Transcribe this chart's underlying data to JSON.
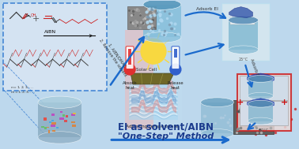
{
  "background_color": "#bdd8ed",
  "title_text1": "EI as solvent/AIBN",
  "title_text2": "\"One-Step\" Method",
  "title_color": "#1a3a8c",
  "title_fontsize1": 8.5,
  "title_fontsize2": 8.0,
  "center_label_solar": "Solar Cell",
  "center_label_absorb": "Absorb\nheat",
  "center_label_release": "Release\nheat",
  "center_label_adjust": "Adjusting temperature",
  "arrow_color": "#1a6acc",
  "dashed_box_color": "#1a6acc",
  "label_aibn": "1. AIBN/DMAC\n2. Remove the solvent",
  "label_adsorb": "Adsorb EI",
  "center_bg_left": "#f0b8b8",
  "center_bg_right": "#c0dcf0",
  "center_solar_color": "#8a8830",
  "thermometer_red": "#e03030",
  "thermometer_blue": "#3060cc",
  "dashed_box_bg": "#dce8f4",
  "cylinder_blue_body": "#5a9ac8",
  "cylinder_blue_top": "#80b8e0",
  "beaker_body": "#70a8c8",
  "beaker_top": "#88bcd8",
  "sun_color": "#f8d840",
  "pcm_color": "#c8e8f8",
  "photo_border_top": "#bbddee",
  "photo_border_red": "#cc2020",
  "text_dark": "#222222",
  "text_gray": "#444444"
}
